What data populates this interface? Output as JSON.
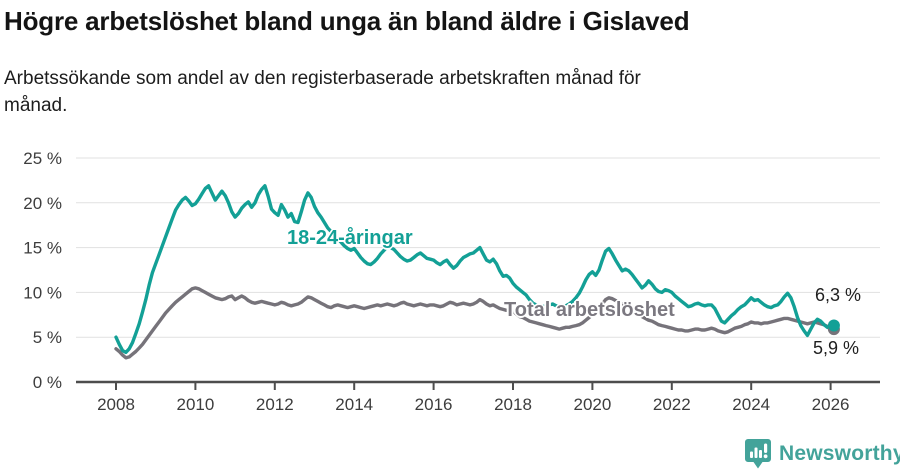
{
  "header": {
    "title": "Högre arbetslöshet bland unga än bland äldre i Gislaved",
    "subtitle_lines": [
      "Arbetssökande som andel av den registerbaserade arbetskraften månad för",
      "månad."
    ]
  },
  "colors": {
    "youth_line": "#13a096",
    "total_line": "#76737a",
    "total_label_text": "#7b7880",
    "grid": "#e1e1e1",
    "axis": "#4d4d4d",
    "tick_text": "#3d3d3d",
    "title_text": "#141414",
    "brand_teal": "#43a39a"
  },
  "chart_data": {
    "type": "line",
    "title": "Högre arbetslöshet bland unga än bland äldre i Gislaved",
    "subtitle": "Arbetssökande som andel av den registerbaserade arbetskraften månad för månad.",
    "x_start": "2008-01",
    "x_frequency": "monthly",
    "xlim": [
      2008,
      2026.17
    ],
    "ylim": [
      0,
      25
    ],
    "grid": "horizontal",
    "y_ticks": [
      0,
      5,
      10,
      15,
      20,
      25
    ],
    "y_tick_labels": [
      "0 %",
      "5 %",
      "10 %",
      "15 %",
      "20 %",
      "25 %"
    ],
    "x_tick_years": [
      2008,
      2010,
      2012,
      2014,
      2016,
      2018,
      2020,
      2022,
      2024,
      2026
    ],
    "x_tick_labels": [
      "2008",
      "2010",
      "2012",
      "2014",
      "2016",
      "2018",
      "2020",
      "2022",
      "2024",
      "2026"
    ],
    "legend_position": "inline-labels",
    "series": [
      {
        "name": "18-24-åringar",
        "color": "#13a096",
        "end_label": "6,3 %",
        "final_value": 6.3,
        "values": [
          5.0,
          4.2,
          3.5,
          3.3,
          3.7,
          4.4,
          5.4,
          6.5,
          7.8,
          9.2,
          10.8,
          12.2,
          13.2,
          14.2,
          15.2,
          16.2,
          17.2,
          18.2,
          19.2,
          19.8,
          20.3,
          20.6,
          20.2,
          19.7,
          19.9,
          20.4,
          21.0,
          21.6,
          21.9,
          21.1,
          20.3,
          20.8,
          21.3,
          20.8,
          20.0,
          19.0,
          18.4,
          18.8,
          19.4,
          19.8,
          20.1,
          19.5,
          20.0,
          20.9,
          21.5,
          21.9,
          20.7,
          19.3,
          18.9,
          18.6,
          19.8,
          19.2,
          18.4,
          18.8,
          17.9,
          17.8,
          19.0,
          20.3,
          21.1,
          20.6,
          19.6,
          18.9,
          18.4,
          17.8,
          17.2,
          16.8,
          16.4,
          16.0,
          15.6,
          15.2,
          14.9,
          14.7,
          14.9,
          14.4,
          13.9,
          13.5,
          13.2,
          13.1,
          13.4,
          13.8,
          14.3,
          14.7,
          15.1,
          15.0,
          14.8,
          14.4,
          14.0,
          13.7,
          13.5,
          13.6,
          13.9,
          14.2,
          14.4,
          14.1,
          13.8,
          13.7,
          13.6,
          13.3,
          13.1,
          13.4,
          13.6,
          13.1,
          12.7,
          13.0,
          13.5,
          13.9,
          14.1,
          14.3,
          14.4,
          14.7,
          15.0,
          14.3,
          13.6,
          13.4,
          13.7,
          13.2,
          12.4,
          11.8,
          11.9,
          11.6,
          11.0,
          10.6,
          10.3,
          10.0,
          9.7,
          9.2,
          8.8,
          8.6,
          8.5,
          8.4,
          8.5,
          8.6,
          8.7,
          8.5,
          8.4,
          8.3,
          8.5,
          8.7,
          9.0,
          9.4,
          9.9,
          10.6,
          11.4,
          12.0,
          12.3,
          11.9,
          12.5,
          13.6,
          14.6,
          14.9,
          14.3,
          13.6,
          13.0,
          12.4,
          12.6,
          12.4,
          12.0,
          11.5,
          11.0,
          10.5,
          10.8,
          11.3,
          10.9,
          10.4,
          10.1,
          10.0,
          10.3,
          10.2,
          10.0,
          9.6,
          9.3,
          9.0,
          8.7,
          8.4,
          8.5,
          8.7,
          8.8,
          8.6,
          8.5,
          8.6,
          8.6,
          8.2,
          7.5,
          6.8,
          6.6,
          7.0,
          7.4,
          7.7,
          8.1,
          8.4,
          8.6,
          9.0,
          9.4,
          9.1,
          9.2,
          8.9,
          8.6,
          8.4,
          8.3,
          8.5,
          8.6,
          9.0,
          9.5,
          9.9,
          9.4,
          8.4,
          7.2,
          6.3,
          5.7,
          5.2,
          5.9,
          6.6,
          7.0,
          6.8,
          6.4,
          6.1,
          6.0,
          6.3
        ]
      },
      {
        "name": "Total arbetslöshet",
        "color": "#76737a",
        "end_label": "5,9 %",
        "final_value": 5.9,
        "values": [
          3.7,
          3.4,
          3.0,
          2.7,
          2.8,
          3.1,
          3.4,
          3.8,
          4.2,
          4.7,
          5.2,
          5.7,
          6.2,
          6.7,
          7.2,
          7.7,
          8.1,
          8.5,
          8.9,
          9.2,
          9.5,
          9.8,
          10.1,
          10.4,
          10.5,
          10.4,
          10.2,
          10.0,
          9.8,
          9.6,
          9.4,
          9.3,
          9.2,
          9.3,
          9.5,
          9.6,
          9.2,
          9.4,
          9.6,
          9.4,
          9.1,
          8.9,
          8.8,
          8.9,
          9.0,
          8.9,
          8.8,
          8.7,
          8.6,
          8.7,
          8.9,
          8.8,
          8.6,
          8.5,
          8.6,
          8.7,
          8.9,
          9.2,
          9.5,
          9.4,
          9.2,
          9.0,
          8.8,
          8.6,
          8.4,
          8.3,
          8.5,
          8.6,
          8.5,
          8.4,
          8.3,
          8.4,
          8.5,
          8.4,
          8.3,
          8.2,
          8.3,
          8.4,
          8.5,
          8.6,
          8.5,
          8.6,
          8.7,
          8.6,
          8.5,
          8.6,
          8.8,
          8.9,
          8.7,
          8.6,
          8.5,
          8.6,
          8.7,
          8.6,
          8.5,
          8.6,
          8.6,
          8.5,
          8.4,
          8.5,
          8.7,
          8.9,
          8.8,
          8.6,
          8.7,
          8.8,
          8.7,
          8.6,
          8.7,
          8.9,
          9.2,
          9.0,
          8.7,
          8.5,
          8.6,
          8.4,
          8.2,
          8.1,
          8.0,
          8.0,
          7.9,
          7.6,
          7.3,
          7.2,
          7.0,
          6.8,
          6.7,
          6.6,
          6.5,
          6.4,
          6.3,
          6.2,
          6.1,
          6.0,
          5.9,
          6.0,
          6.1,
          6.1,
          6.2,
          6.3,
          6.4,
          6.6,
          6.9,
          7.2,
          7.5,
          7.6,
          8.0,
          8.7,
          9.2,
          9.4,
          9.3,
          9.1,
          8.9,
          8.7,
          8.6,
          8.4,
          8.2,
          7.9,
          7.6,
          7.3,
          7.1,
          6.9,
          6.8,
          6.6,
          6.4,
          6.3,
          6.2,
          6.1,
          6.0,
          5.9,
          5.8,
          5.8,
          5.7,
          5.7,
          5.8,
          5.9,
          5.9,
          5.8,
          5.8,
          5.9,
          6.0,
          5.9,
          5.7,
          5.6,
          5.5,
          5.6,
          5.8,
          6.0,
          6.1,
          6.2,
          6.4,
          6.5,
          6.7,
          6.6,
          6.6,
          6.5,
          6.6,
          6.6,
          6.7,
          6.8,
          6.9,
          7.0,
          7.1,
          7.1,
          7.0,
          6.9,
          6.8,
          6.7,
          6.6,
          6.5,
          6.6,
          6.7,
          6.6,
          6.5,
          6.4,
          6.2,
          6.0,
          5.9
        ]
      }
    ]
  },
  "footer": {
    "brand": "Newsworthy",
    "logo_icon": "bar-chart-speech-bubble-icon"
  }
}
